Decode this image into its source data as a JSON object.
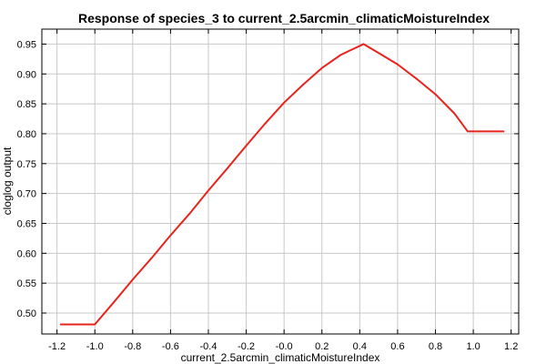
{
  "chart_data": {
    "type": "line",
    "title": "Response of species_3 to current_2.5arcmin_climaticMoistureIndex",
    "xlabel": "current_2.5arcmin_climaticMoistureIndex",
    "ylabel": "cloglog output",
    "xlim": [
      -1.28,
      1.24
    ],
    "ylim": [
      0.465,
      0.975
    ],
    "xticks": [
      -1.2,
      -1.0,
      -0.8,
      -0.6,
      -0.4,
      -0.2,
      0.0,
      0.2,
      0.4,
      0.6,
      0.8,
      1.0,
      1.2
    ],
    "xtick_labels": [
      "-1.2",
      "-1.0",
      "-0.8",
      "-0.6",
      "-0.4",
      "-0.2",
      "-0.0",
      "0.2",
      "0.4",
      "0.6",
      "0.8",
      "1.0",
      "1.2"
    ],
    "yticks": [
      0.5,
      0.55,
      0.6,
      0.65,
      0.7,
      0.75,
      0.8,
      0.85,
      0.9,
      0.95
    ],
    "ytick_labels": [
      "0.50",
      "0.55",
      "0.60",
      "0.65",
      "0.70",
      "0.75",
      "0.80",
      "0.85",
      "0.90",
      "0.95"
    ],
    "grid": true,
    "series": [
      {
        "color": "#e8231c",
        "x": [
          -1.18,
          -1.0,
          -0.9,
          -0.8,
          -0.7,
          -0.6,
          -0.5,
          -0.4,
          -0.3,
          -0.2,
          -0.1,
          0.0,
          0.1,
          0.2,
          0.3,
          0.42,
          0.5,
          0.6,
          0.7,
          0.8,
          0.9,
          0.97,
          1.16
        ],
        "y": [
          0.481,
          0.481,
          0.518,
          0.556,
          0.592,
          0.63,
          0.666,
          0.705,
          0.742,
          0.78,
          0.817,
          0.852,
          0.882,
          0.91,
          0.932,
          0.95,
          0.935,
          0.916,
          0.892,
          0.866,
          0.834,
          0.804,
          0.804
        ]
      }
    ]
  }
}
